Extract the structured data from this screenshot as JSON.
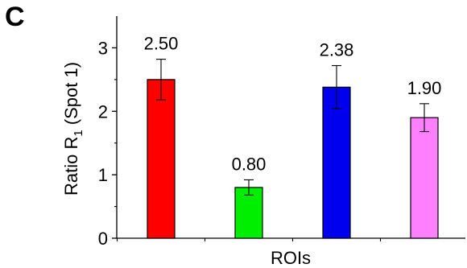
{
  "panel_label": "C",
  "chart_data": {
    "type": "bar",
    "categories": [
      "",
      "",
      "",
      ""
    ],
    "values": [
      2.5,
      0.8,
      2.38,
      1.9
    ],
    "errors": [
      0.32,
      0.12,
      0.34,
      0.22
    ],
    "data_labels": [
      "2.50",
      "0.80",
      "2.38",
      "1.90"
    ],
    "colors": [
      "#ff0000",
      "#00ee00",
      "#0000ee",
      "#ff80ff"
    ],
    "title": "",
    "xlabel": "ROIs",
    "ylabel_main": "Ratio R",
    "ylabel_sub": "1",
    "ylabel_tail": " (Spot 1)",
    "ylim": [
      0,
      3.5
    ],
    "yticks": [
      0,
      1,
      2,
      3
    ],
    "ytick_labels": [
      "0",
      "1",
      "2",
      "3"
    ],
    "grid": false,
    "legend": "none"
  }
}
